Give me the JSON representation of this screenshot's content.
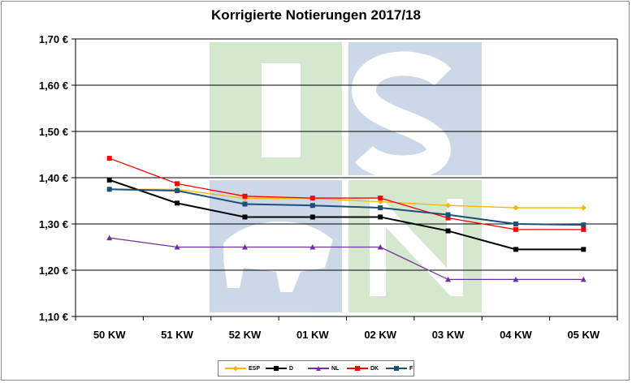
{
  "chart_data": {
    "type": "line",
    "title": "Korrigierte Notierungen 2017/18",
    "categories": [
      "50 KW",
      "51 KW",
      "52 KW",
      "01 KW",
      "02 KW",
      "03 KW",
      "04 KW",
      "05 KW"
    ],
    "yticks": [
      "1,10 €",
      "1,20 €",
      "1,30 €",
      "1,40 €",
      "1,50 €",
      "1,60 €",
      "1,70 €"
    ],
    "ylim": [
      1.1,
      1.7
    ],
    "grid": true,
    "legend_position": "bottom",
    "watermark": "ISN",
    "series": [
      {
        "name": "ESP",
        "color": "#f5b800",
        "marker": "diamond",
        "values": [
          1.375,
          1.375,
          1.355,
          1.355,
          1.348,
          1.34,
          1.335,
          1.335
        ]
      },
      {
        "name": "D",
        "color": "#000000",
        "marker": "square",
        "values": [
          1.395,
          1.345,
          1.315,
          1.315,
          1.315,
          1.285,
          1.245,
          1.245
        ]
      },
      {
        "name": "NL",
        "color": "#7030a0",
        "marker": "triangle",
        "values": [
          1.27,
          1.25,
          1.25,
          1.25,
          1.25,
          1.18,
          1.18,
          1.18
        ]
      },
      {
        "name": "DK",
        "color": "#ff0000",
        "marker": "square",
        "values": [
          1.442,
          1.387,
          1.36,
          1.356,
          1.356,
          1.313,
          1.288,
          1.288
        ]
      },
      {
        "name": "F",
        "color": "#1f4e79",
        "marker": "square",
        "values": [
          1.375,
          1.372,
          1.343,
          1.34,
          1.335,
          1.32,
          1.3,
          1.298
        ]
      }
    ]
  }
}
